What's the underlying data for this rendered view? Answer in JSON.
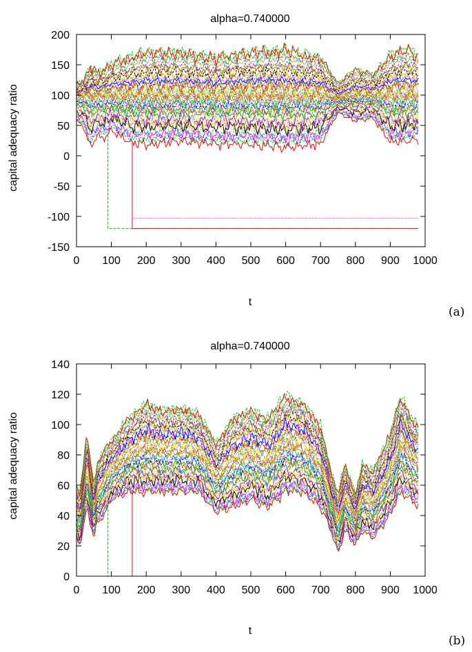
{
  "figure": {
    "panels": [
      {
        "label": "(a)"
      },
      {
        "label": "(b)"
      }
    ]
  },
  "chart_data": [
    {
      "type": "line",
      "title": "alpha=0.740000",
      "xlabel": "t",
      "ylabel": "capital adequacy ratio",
      "xlim": [
        0,
        1000
      ],
      "ylim": [
        -150,
        200
      ],
      "xticks": [
        0,
        100,
        200,
        300,
        400,
        500,
        600,
        700,
        800,
        900,
        1000
      ],
      "yticks": [
        -150,
        -100,
        -50,
        0,
        50,
        100,
        150,
        200
      ],
      "t_end": 980,
      "grid": false,
      "legend": "none",
      "bank_envelopes": {
        "t": [
          0,
          20,
          40,
          60,
          80,
          100,
          150,
          200,
          300,
          400,
          500,
          600,
          700,
          750,
          800,
          850,
          900,
          950,
          980
        ],
        "upper": [
          120,
          125,
          150,
          140,
          145,
          155,
          165,
          175,
          175,
          165,
          175,
          178,
          165,
          120,
          145,
          135,
          170,
          180,
          170
        ],
        "lower": [
          55,
          45,
          10,
          30,
          25,
          40,
          20,
          15,
          20,
          15,
          15,
          10,
          15,
          70,
          55,
          60,
          20,
          20,
          25
        ],
        "center": [
          100,
          100,
          100,
          100,
          100,
          100,
          100,
          100,
          100,
          100,
          100,
          100,
          100,
          95,
          100,
          100,
          100,
          100,
          100
        ]
      },
      "failed_banks": [
        {
          "fail_t": 90,
          "level": -120,
          "color": "#00cc00"
        },
        {
          "fail_t": 160,
          "level": -120,
          "color": "#ff0000"
        },
        {
          "fail_t": 160,
          "level": -103,
          "color": "#ff00ff"
        }
      ]
    },
    {
      "type": "line",
      "title": "alpha=0.740000",
      "xlabel": "t",
      "ylabel": "capital adequacy ratio",
      "xlim": [
        0,
        1000
      ],
      "ylim": [
        0,
        140
      ],
      "xticks": [
        0,
        100,
        200,
        300,
        400,
        500,
        600,
        700,
        800,
        900,
        1000
      ],
      "yticks": [
        0,
        20,
        40,
        60,
        80,
        100,
        120,
        140
      ],
      "t_end": 980,
      "grid": false,
      "legend": "none",
      "bank_envelopes": {
        "t": [
          0,
          10,
          30,
          50,
          60,
          80,
          100,
          150,
          200,
          250,
          300,
          350,
          400,
          450,
          500,
          550,
          600,
          650,
          700,
          730,
          750,
          770,
          800,
          820,
          850,
          900,
          930,
          960,
          980
        ],
        "upper": [
          60,
          55,
          95,
          60,
          75,
          85,
          90,
          105,
          115,
          110,
          112,
          108,
          88,
          105,
          110,
          105,
          120,
          115,
          100,
          70,
          55,
          75,
          55,
          75,
          70,
          95,
          120,
          105,
          100
        ],
        "lower": [
          25,
          20,
          45,
          25,
          35,
          40,
          50,
          55,
          55,
          55,
          55,
          55,
          42,
          45,
          50,
          45,
          55,
          55,
          45,
          30,
          15,
          30,
          20,
          30,
          25,
          40,
          55,
          50,
          45
        ]
      },
      "failed_banks": [
        {
          "fail_t": 90,
          "level": 0,
          "color": "#00cc00"
        },
        {
          "fail_t": 160,
          "level": 0,
          "color": "#ff0000"
        }
      ]
    }
  ]
}
